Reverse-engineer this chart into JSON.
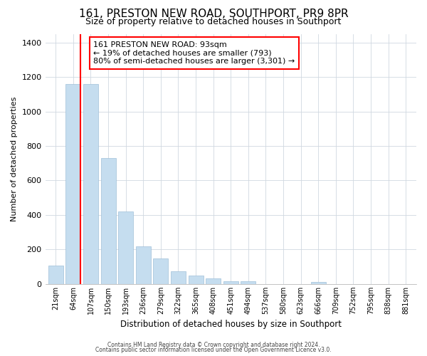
{
  "title": "161, PRESTON NEW ROAD, SOUTHPORT, PR9 8PR",
  "subtitle": "Size of property relative to detached houses in Southport",
  "xlabel": "Distribution of detached houses by size in Southport",
  "ylabel": "Number of detached properties",
  "bar_labels": [
    "21sqm",
    "64sqm",
    "107sqm",
    "150sqm",
    "193sqm",
    "236sqm",
    "279sqm",
    "322sqm",
    "365sqm",
    "408sqm",
    "451sqm",
    "494sqm",
    "537sqm",
    "580sqm",
    "623sqm",
    "666sqm",
    "709sqm",
    "752sqm",
    "795sqm",
    "838sqm",
    "881sqm"
  ],
  "bar_values": [
    107,
    1160,
    1160,
    730,
    420,
    220,
    150,
    75,
    50,
    33,
    18,
    15,
    0,
    0,
    0,
    10,
    0,
    0,
    0,
    0,
    0
  ],
  "bar_color": "#c5ddef",
  "bar_edge_color": "#a0c0d8",
  "ylim": [
    0,
    1450
  ],
  "yticks": [
    0,
    200,
    400,
    600,
    800,
    1000,
    1200,
    1400
  ],
  "annotation_title": "161 PRESTON NEW ROAD: 93sqm",
  "annotation_line1": "← 19% of detached houses are smaller (793)",
  "annotation_line2": "80% of semi-detached houses are larger (3,301) →",
  "footer_line1": "Contains HM Land Registry data © Crown copyright and database right 2024.",
  "footer_line2": "Contains public sector information licensed under the Open Government Licence v3.0.",
  "title_fontsize": 11,
  "subtitle_fontsize": 9,
  "background_color": "#ffffff",
  "red_line_after_bar_index": 1
}
